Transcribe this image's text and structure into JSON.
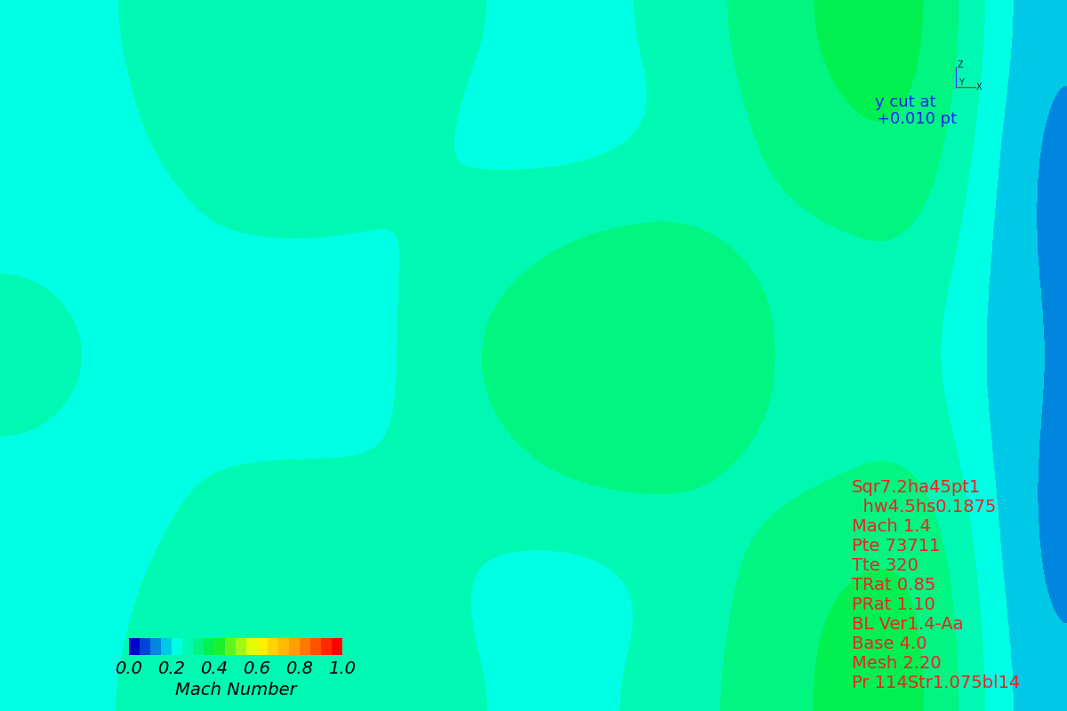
{
  "chart_data": {
    "type": "heatmap",
    "cells": [
      [
        0.22,
        0.26,
        0.27,
        0.27,
        0.27,
        0.25,
        0.23,
        0.26,
        0.32,
        0.37,
        0.38,
        0.15
      ],
      [
        0.2,
        0.25,
        0.28,
        0.28,
        0.26,
        0.24,
        0.21,
        0.25,
        0.3,
        0.35,
        0.36,
        0.13
      ],
      [
        0.24,
        0.22,
        0.26,
        0.27,
        0.24,
        0.26,
        0.3,
        0.31,
        0.28,
        0.3,
        0.32,
        0.13
      ],
      [
        0.26,
        0.24,
        0.21,
        0.2,
        0.25,
        0.31,
        0.34,
        0.34,
        0.31,
        0.27,
        0.28,
        0.14
      ],
      [
        0.26,
        0.24,
        0.21,
        0.2,
        0.25,
        0.31,
        0.34,
        0.34,
        0.31,
        0.27,
        0.28,
        0.14
      ],
      [
        0.24,
        0.22,
        0.27,
        0.28,
        0.25,
        0.27,
        0.31,
        0.31,
        0.28,
        0.3,
        0.33,
        0.13
      ],
      [
        0.2,
        0.25,
        0.28,
        0.29,
        0.27,
        0.24,
        0.21,
        0.26,
        0.31,
        0.36,
        0.37,
        0.13
      ],
      [
        0.22,
        0.26,
        0.28,
        0.28,
        0.27,
        0.25,
        0.23,
        0.27,
        0.32,
        0.37,
        0.38,
        0.15
      ]
    ],
    "color_range": [
      0,
      1
    ],
    "color_ticks": [
      {
        "value": 0,
        "label": "0.0"
      },
      0.2,
      0.4,
      0.6,
      0.8,
      {
        "value": 1,
        "label": "1.0"
      }
    ],
    "colorbar_label": "Mach Number",
    "tick_labels": false,
    "axis_triad": [
      "Z",
      "Y",
      "X"
    ],
    "annotations": [
      "y cut at",
      "+0.010 pt"
    ],
    "info_lines": [
      "Sqr7.2ha45pt1",
      "  hw4.5hs0.1875",
      "Mach 1.4",
      "Pte 73711",
      "Tte 320",
      "TRat 0.85",
      "PRat 1.10",
      "BL Ver1.4-Aa",
      "Base 4.0",
      "Mesh 2.20",
      "Pr 114Str1.075bl14"
    ]
  }
}
